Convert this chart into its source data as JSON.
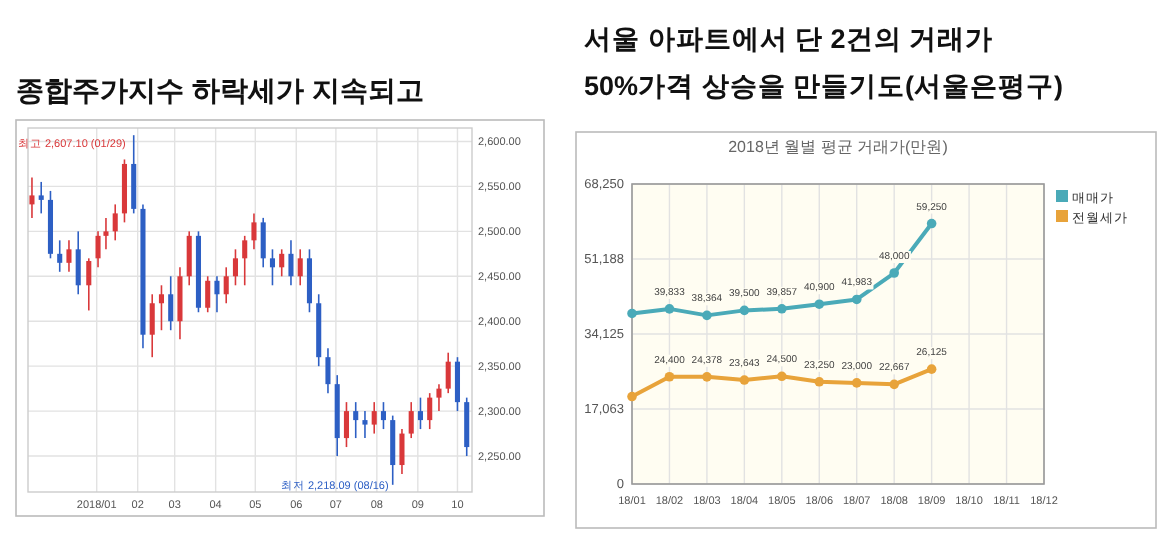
{
  "chart_data": [
    {
      "type": "candlestick",
      "title": "종합주가지수 하락세가 지속되고",
      "x": [
        "2017-11-13",
        "2017-11-20",
        "2017-11-27",
        "2017-12-04",
        "2017-12-11",
        "2017-12-18",
        "2017-12-26",
        "2018-01-02",
        "2018-01-08",
        "2018-01-15",
        "2018-01-22",
        "2018-01-29",
        "2018-02-05",
        "2018-02-12",
        "2018-02-19",
        "2018-02-26",
        "2018-03-05",
        "2018-03-12",
        "2018-03-19",
        "2018-03-26",
        "2018-04-02",
        "2018-04-09",
        "2018-04-16",
        "2018-04-23",
        "2018-04-30",
        "2018-05-07",
        "2018-05-14",
        "2018-05-21",
        "2018-05-28",
        "2018-06-04",
        "2018-06-11",
        "2018-06-18",
        "2018-06-25",
        "2018-07-02",
        "2018-07-09",
        "2018-07-16",
        "2018-07-23",
        "2018-07-30",
        "2018-08-06",
        "2018-08-13",
        "2018-08-20",
        "2018-08-27",
        "2018-09-03",
        "2018-09-10",
        "2018-09-17",
        "2018-09-24",
        "2018-10-01",
        "2018-10-08"
      ],
      "ohlc": [
        [
          2530,
          2560,
          2515,
          2540
        ],
        [
          2540,
          2555,
          2520,
          2535
        ],
        [
          2535,
          2545,
          2470,
          2475
        ],
        [
          2475,
          2490,
          2455,
          2465
        ],
        [
          2465,
          2490,
          2455,
          2480
        ],
        [
          2480,
          2500,
          2430,
          2440
        ],
        [
          2440,
          2470,
          2412,
          2467
        ],
        [
          2470,
          2500,
          2460,
          2495
        ],
        [
          2495,
          2515,
          2480,
          2500
        ],
        [
          2500,
          2530,
          2490,
          2520
        ],
        [
          2520,
          2580,
          2510,
          2575
        ],
        [
          2575,
          2607,
          2520,
          2525
        ],
        [
          2525,
          2530,
          2370,
          2385
        ],
        [
          2385,
          2430,
          2360,
          2420
        ],
        [
          2420,
          2440,
          2390,
          2430
        ],
        [
          2430,
          2450,
          2390,
          2400
        ],
        [
          2400,
          2460,
          2380,
          2450
        ],
        [
          2450,
          2500,
          2440,
          2495
        ],
        [
          2495,
          2500,
          2410,
          2415
        ],
        [
          2415,
          2450,
          2410,
          2445
        ],
        [
          2445,
          2450,
          2410,
          2430
        ],
        [
          2430,
          2460,
          2420,
          2450
        ],
        [
          2450,
          2480,
          2440,
          2470
        ],
        [
          2470,
          2495,
          2440,
          2490
        ],
        [
          2490,
          2520,
          2480,
          2510
        ],
        [
          2510,
          2515,
          2460,
          2470
        ],
        [
          2470,
          2480,
          2440,
          2460
        ],
        [
          2460,
          2480,
          2450,
          2475
        ],
        [
          2475,
          2490,
          2440,
          2450
        ],
        [
          2450,
          2480,
          2440,
          2470
        ],
        [
          2470,
          2480,
          2410,
          2420
        ],
        [
          2420,
          2430,
          2350,
          2360
        ],
        [
          2360,
          2370,
          2320,
          2330
        ],
        [
          2330,
          2340,
          2250,
          2270
        ],
        [
          2270,
          2310,
          2260,
          2300
        ],
        [
          2300,
          2310,
          2270,
          2290
        ],
        [
          2290,
          2300,
          2270,
          2285
        ],
        [
          2285,
          2310,
          2275,
          2300
        ],
        [
          2300,
          2310,
          2280,
          2290
        ],
        [
          2290,
          2295,
          2218,
          2240
        ],
        [
          2240,
          2280,
          2230,
          2275
        ],
        [
          2275,
          2310,
          2270,
          2300
        ],
        [
          2300,
          2315,
          2280,
          2290
        ],
        [
          2290,
          2320,
          2280,
          2315
        ],
        [
          2315,
          2330,
          2300,
          2325
        ],
        [
          2325,
          2365,
          2320,
          2355
        ],
        [
          2355,
          2360,
          2300,
          2310
        ],
        [
          2310,
          2315,
          2250,
          2260
        ]
      ],
      "xlim": [
        "2017-11-10",
        "2018-10-12"
      ],
      "ylim": [
        2210,
        2615
      ],
      "xticks": [
        {
          "value": "2018-01-01",
          "label": "2018/01"
        },
        {
          "value": "2018-02-01",
          "label": "02"
        },
        {
          "value": "2018-03-01",
          "label": "03"
        },
        {
          "value": "2018-04-01",
          "label": "04"
        },
        {
          "value": "2018-05-01",
          "label": "05"
        },
        {
          "value": "2018-06-01",
          "label": "06"
        },
        {
          "value": "2018-07-01",
          "label": "07"
        },
        {
          "value": "2018-08-01",
          "label": "08"
        },
        {
          "value": "2018-09-01",
          "label": "09"
        },
        {
          "value": "2018-10-01",
          "label": "10"
        }
      ],
      "yticks": [
        {
          "value": 2250,
          "label": "2,250.00"
        },
        {
          "value": 2300,
          "label": "2,300.00"
        },
        {
          "value": 2350,
          "label": "2,350.00"
        },
        {
          "value": 2400,
          "label": "2,400.00"
        },
        {
          "value": 2450,
          "label": "2,450.00"
        },
        {
          "value": 2500,
          "label": "2,500.00"
        },
        {
          "value": 2550,
          "label": "2,550.00"
        },
        {
          "value": 2600,
          "label": "2,600.00"
        }
      ],
      "grid": true,
      "annotations": [
        {
          "text": "최고 2,607.10 (01/29)",
          "x": "2018-01-29",
          "y": 2607.1
        },
        {
          "text": "최저 2,218.09 (08/16)",
          "x": "2018-08-16",
          "y": 2218.09
        }
      ]
    },
    {
      "type": "line",
      "title": "서울 아파트에서 단 2건의 거래가 50%가격 상승을 만들기도(서울은평구)",
      "subtitle": "2018년 월별 평균 거래가(만원)",
      "categories": [
        "18/01",
        "18/02",
        "18/03",
        "18/04",
        "18/05",
        "18/06",
        "18/07",
        "18/08",
        "18/09",
        "18/10",
        "18/11",
        "18/12"
      ],
      "series": [
        {
          "name": "매매가",
          "color": "#4aaab8",
          "values": [
            38800,
            39833,
            38364,
            39500,
            39857,
            40900,
            41983,
            48000,
            59250,
            null,
            null,
            null
          ],
          "value_labels": [
            null,
            "39,833",
            "38,364",
            "39,500",
            "39,857",
            "40,900",
            "41,983",
            "48,000",
            "59,250",
            null,
            null,
            null
          ]
        },
        {
          "name": "전월세가",
          "color": "#e8a33a",
          "values": [
            19900,
            24400,
            24378,
            23643,
            24500,
            23250,
            23000,
            22667,
            26125,
            null,
            null,
            null
          ],
          "value_labels": [
            null,
            "24,400",
            "24,378",
            "23,643",
            "24,500",
            "23,250",
            "23,000",
            "22,667",
            "26,125",
            null,
            null,
            null
          ]
        }
      ],
      "ylim": [
        0,
        68250
      ],
      "yticks": [
        0,
        {
          "value": 17063,
          "label": "17,063"
        },
        {
          "value": 34125,
          "label": "34,125"
        },
        {
          "value": 51188,
          "label": "51,188"
        },
        {
          "value": 68250,
          "label": "68,250"
        }
      ],
      "grid": true,
      "legend": "right",
      "marker": "circle"
    }
  ]
}
